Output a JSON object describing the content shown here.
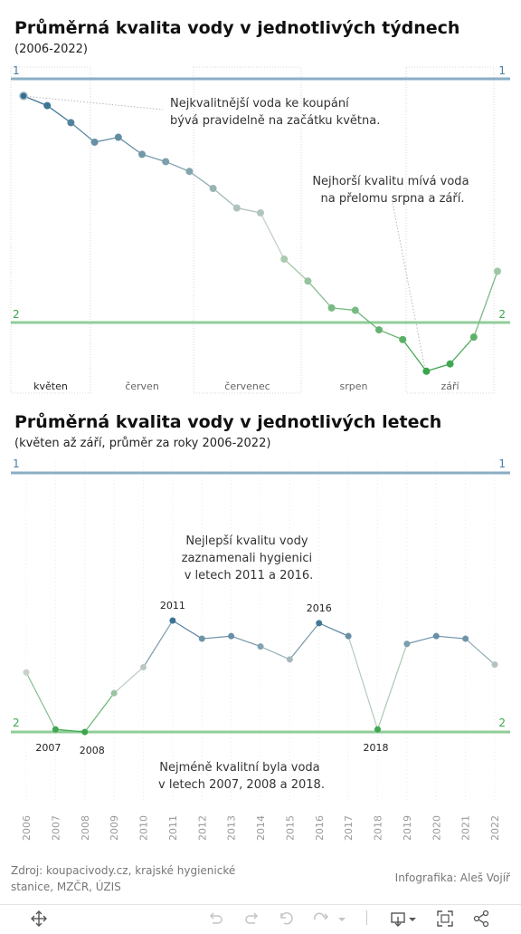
{
  "weekly": {
    "title": "Průměrná kvalita vody v jednotlivých týdnech",
    "subtitle": "(2006-2022)",
    "level_top_label": "1",
    "level_bottom_label": "2",
    "months": [
      "květen",
      "červen",
      "červenec",
      "srpen",
      "září"
    ],
    "highlighted_month": "květen",
    "annotation_best": [
      "Nejkvalitnější voda ke koupání",
      "bývá pravidelně na začátku května."
    ],
    "annotation_worst": [
      "Nejhorší kvalitu mívá voda",
      "na přelomu srpna a září."
    ]
  },
  "yearly": {
    "title": "Průměrná kvalita vody v jednotlivých letech",
    "subtitle": "(květen až září, průměr za roky 2006-2022)",
    "level_top_label": "1",
    "level_bottom_label": "2",
    "annotation_best": [
      "Nejlepší kvalitu vody",
      "zaznamenali hygienici",
      "v letech 2011 a 2016."
    ],
    "annotation_worst": [
      "Nejméně kvalitní byla voda",
      "v letech 2007, 2008 a 2018."
    ]
  },
  "chart_data": [
    {
      "type": "line",
      "title": "Průměrná kvalita vody v jednotlivých týdnech",
      "subtitle": "(2006-2022)",
      "x_unit": "week (květen to září)",
      "x": [
        1,
        2,
        3,
        4,
        5,
        6,
        7,
        8,
        9,
        10,
        11,
        12,
        13,
        14,
        15,
        16,
        17,
        18,
        19,
        20,
        21
      ],
      "y": [
        1.07,
        1.11,
        1.18,
        1.26,
        1.24,
        1.31,
        1.34,
        1.38,
        1.45,
        1.53,
        1.55,
        1.74,
        1.83,
        1.94,
        1.95,
        2.03,
        2.07,
        2.2,
        2.17,
        2.06,
        1.79
      ],
      "ylim": [
        1,
        2.3
      ],
      "y_inverted": true,
      "reference_lines": [
        1,
        2
      ],
      "month_groups": [
        "květen",
        "červen",
        "červenec",
        "srpen",
        "září"
      ],
      "color_scale": {
        "low": "#2e6a8e",
        "mid": "#c7d3c8",
        "high": "#3aa64c"
      },
      "grid": false
    },
    {
      "type": "line",
      "title": "Průměrná kvalita vody v jednotlivých letech",
      "subtitle": "(květen až září, průměr za roky 2006-2022)",
      "categories": [
        "2006",
        "2007",
        "2008",
        "2009",
        "2010",
        "2011",
        "2012",
        "2013",
        "2014",
        "2015",
        "2016",
        "2017",
        "2018",
        "2019",
        "2020",
        "2021",
        "2022"
      ],
      "values": [
        1.77,
        1.99,
        2.0,
        1.85,
        1.75,
        1.57,
        1.64,
        1.63,
        1.67,
        1.72,
        1.58,
        1.63,
        1.99,
        1.66,
        1.63,
        1.64,
        1.74
      ],
      "labeled_points": [
        "2007",
        "2008",
        "2011",
        "2016",
        "2018"
      ],
      "ylim": [
        1,
        2
      ],
      "y_inverted": true,
      "reference_lines": [
        1,
        2
      ],
      "color_scale": {
        "low": "#2e6a8e",
        "mid": "#cdd2ce",
        "high": "#3aa64c"
      },
      "grid": false
    }
  ],
  "footer": {
    "source": "Zdroj: koupacivody.cz, krajské hygienické stanice, MZČR, ÚZIS",
    "credit": "Infografika: Aleš Vojíř"
  },
  "toolbar": {
    "icons": [
      "move-icon",
      "undo-icon",
      "redo-icon",
      "revert-icon",
      "refresh-icon",
      "download-icon",
      "fullscreen-icon",
      "share-icon"
    ]
  }
}
